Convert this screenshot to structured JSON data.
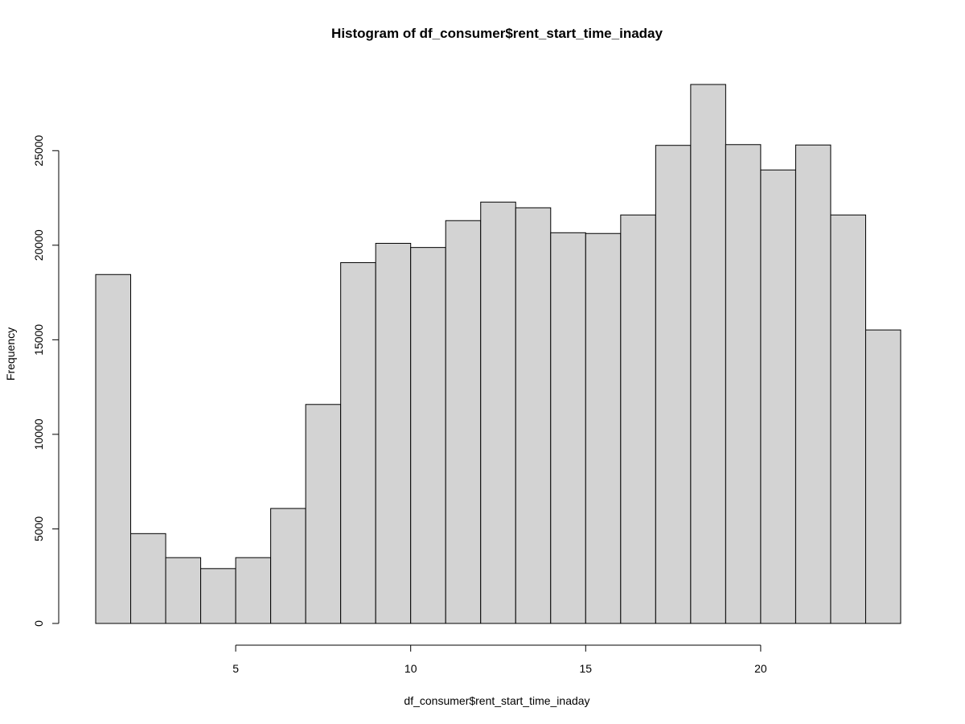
{
  "chart_data": {
    "type": "bar",
    "title": "Histogram of df_consumer$rent_start_time_inaday",
    "xlabel": "df_consumer$rent_start_time_inaday",
    "ylabel": "Frequency",
    "bin_edges": [
      1,
      2,
      3,
      4,
      5,
      6,
      7,
      8,
      9,
      10,
      11,
      12,
      13,
      14,
      15,
      16,
      17,
      18,
      19,
      20,
      21,
      22,
      23,
      24
    ],
    "values": [
      18450,
      4750,
      3480,
      2900,
      3480,
      6080,
      11580,
      19080,
      20100,
      19880,
      21300,
      22280,
      21980,
      20660,
      20620,
      21600,
      25280,
      28500,
      25320,
      23980,
      25300,
      21600,
      15520
    ],
    "xlim": [
      1,
      24
    ],
    "ylim": [
      0,
      28500
    ],
    "x_ticks": [
      5,
      10,
      15,
      20
    ],
    "y_ticks": [
      0,
      5000,
      10000,
      15000,
      20000,
      25000
    ],
    "bar_fill": "#d3d3d3",
    "bar_stroke": "#000000",
    "grid": false
  }
}
